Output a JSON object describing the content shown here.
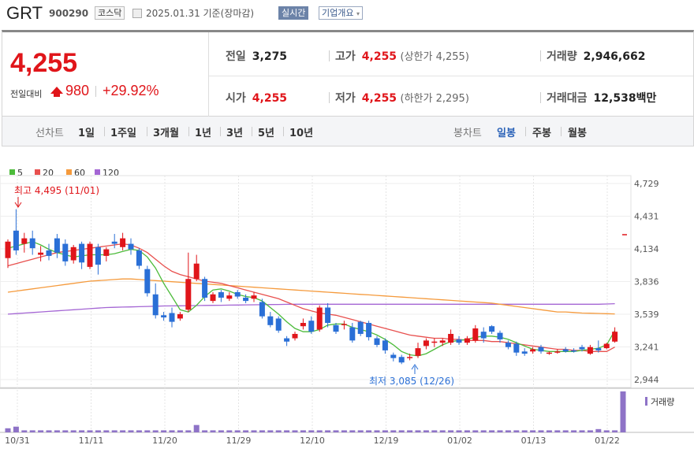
{
  "header": {
    "name": "GRT",
    "code": "900290",
    "market": "코스닥",
    "date_text": "2025.01.31  기준(장마감)",
    "realtime_label": "실시간",
    "company_label": "기업개요",
    "company_caret": "▾"
  },
  "price": {
    "current": "4,255",
    "change_label": "전일대비",
    "change_value": "980",
    "change_pct": "+29.92%"
  },
  "stats": {
    "prev_close_label": "전일",
    "prev_close": "3,275",
    "high_label": "고가",
    "high": "4,255",
    "upper_limit": "(상한가 4,255)",
    "volume_label": "거래량",
    "volume": "2,946,662",
    "open_label": "시가",
    "open": "4,255",
    "low_label": "저가",
    "low": "4,255",
    "lower_limit": "(하한가 2,295)",
    "amount_label": "거래대금",
    "amount": "12,538",
    "amount_unit": "백만"
  },
  "periods": {
    "line_label": "선차트",
    "items": [
      "1일",
      "1주일",
      "3개월",
      "1년",
      "3년",
      "5년",
      "10년"
    ],
    "candle_label": "봉차트",
    "candle_items": [
      "일봉",
      "주봉",
      "월봉"
    ],
    "candle_active": "일봉"
  },
  "colors": {
    "up": "#e0151a",
    "down": "#2a6fd6",
    "ma5": "#4cbb3a",
    "ma20": "#e8504e",
    "ma60": "#f59a3c",
    "ma120": "#a466d4",
    "volume": "#8e73c7"
  },
  "chart_data": {
    "type": "candlestick",
    "legend": [
      "5",
      "20",
      "60",
      "120"
    ],
    "y_ticks": [
      "4,729",
      "4,431",
      "4,134",
      "3,836",
      "3,539",
      "3,241",
      "2,944"
    ],
    "ylim": [
      2944,
      4729
    ],
    "x_ticks": [
      "10/31",
      "11/11",
      "11/20",
      "11/29",
      "12/10",
      "12/19",
      "01/02",
      "01/13",
      "01/22"
    ],
    "max_annotation": "최고 4,495 (11/01)",
    "min_annotation": "최저 3,085 (12/26)",
    "volume_label": "거래량",
    "candles": [
      [
        4050,
        4200,
        3960,
        4220
      ],
      [
        4300,
        4120,
        4080,
        4495
      ],
      [
        4180,
        4230,
        4100,
        4280
      ],
      [
        4230,
        4140,
        4080,
        4300
      ],
      [
        4080,
        4100,
        4020,
        4160
      ],
      [
        4120,
        4070,
        4030,
        4180
      ],
      [
        4230,
        4100,
        4050,
        4270
      ],
      [
        4180,
        4020,
        3980,
        4220
      ],
      [
        4030,
        4150,
        4000,
        4170
      ],
      [
        4180,
        4010,
        3950,
        4200
      ],
      [
        3970,
        4180,
        3950,
        4200
      ],
      [
        4150,
        3990,
        3900,
        4180
      ],
      [
        4070,
        4130,
        4020,
        4150
      ],
      [
        4200,
        4180,
        4140,
        4270
      ],
      [
        4150,
        4230,
        4120,
        4280
      ],
      [
        4180,
        4130,
        4080,
        4230
      ],
      [
        4120,
        3980,
        3950,
        4140
      ],
      [
        3950,
        3730,
        3700,
        3980
      ],
      [
        3720,
        3530,
        3500,
        3820
      ],
      [
        3530,
        3510,
        3480,
        3560
      ],
      [
        3550,
        3470,
        3420,
        3600
      ],
      [
        3500,
        3540,
        3480,
        3560
      ],
      [
        3580,
        3860,
        3560,
        4100
      ],
      [
        3860,
        4000,
        3840,
        4080
      ],
      [
        3860,
        3690,
        3660,
        3880
      ],
      [
        3660,
        3720,
        3640,
        3740
      ],
      [
        3740,
        3690,
        3650,
        3760
      ],
      [
        3680,
        3710,
        3660,
        3740
      ],
      [
        3740,
        3700,
        3680,
        3760
      ],
      [
        3690,
        3660,
        3640,
        3720
      ],
      [
        3680,
        3710,
        3650,
        3740
      ],
      [
        3650,
        3520,
        3500,
        3680
      ],
      [
        3520,
        3440,
        3420,
        3560
      ],
      [
        3500,
        3390,
        3370,
        3520
      ],
      [
        3320,
        3290,
        3250,
        3340
      ],
      [
        3320,
        3360,
        3300,
        3380
      ],
      [
        3430,
        3460,
        3400,
        3500
      ],
      [
        3480,
        3380,
        3360,
        3520
      ],
      [
        3400,
        3600,
        3380,
        3620
      ],
      [
        3600,
        3460,
        3420,
        3640
      ],
      [
        3440,
        3380,
        3360,
        3460
      ],
      [
        3440,
        3450,
        3400,
        3480
      ],
      [
        3420,
        3300,
        3280,
        3460
      ],
      [
        3470,
        3360,
        3340,
        3480
      ],
      [
        3460,
        3330,
        3300,
        3480
      ],
      [
        3320,
        3260,
        3240,
        3340
      ],
      [
        3300,
        3210,
        3180,
        3320
      ],
      [
        3170,
        3140,
        3110,
        3190
      ],
      [
        3150,
        3100,
        3085,
        3170
      ],
      [
        3140,
        3150,
        3120,
        3180
      ],
      [
        3160,
        3230,
        3140,
        3280
      ],
      [
        3250,
        3300,
        3220,
        3320
      ],
      [
        3280,
        3290,
        3240,
        3320
      ],
      [
        3280,
        3300,
        3250,
        3320
      ],
      [
        3280,
        3360,
        3260,
        3400
      ],
      [
        3310,
        3280,
        3260,
        3340
      ],
      [
        3280,
        3320,
        3260,
        3340
      ],
      [
        3300,
        3410,
        3280,
        3440
      ],
      [
        3380,
        3320,
        3280,
        3420
      ],
      [
        3430,
        3380,
        3360,
        3440
      ],
      [
        3370,
        3310,
        3280,
        3390
      ],
      [
        3280,
        3240,
        3220,
        3300
      ],
      [
        3270,
        3190,
        3160,
        3290
      ],
      [
        3200,
        3180,
        3160,
        3230
      ],
      [
        3200,
        3220,
        3180,
        3240
      ],
      [
        3240,
        3200,
        3180,
        3260
      ],
      [
        3180,
        3190,
        3170,
        3200
      ],
      [
        3190,
        3200,
        3180,
        3220
      ],
      [
        3220,
        3200,
        3190,
        3240
      ],
      [
        3210,
        3200,
        3190,
        3230
      ],
      [
        3240,
        3220,
        3200,
        3260
      ],
      [
        3180,
        3240,
        3170,
        3260
      ],
      [
        3230,
        3210,
        3190,
        3300
      ],
      [
        3230,
        3270,
        3220,
        3280
      ],
      [
        3290,
        3380,
        3280,
        3420
      ]
    ],
    "volumes": [
      10,
      14,
      5,
      5,
      5,
      5,
      5,
      5,
      5,
      5,
      5,
      5,
      5,
      5,
      5,
      5,
      5,
      5,
      5,
      5,
      5,
      5,
      5,
      18,
      5,
      5,
      5,
      5,
      5,
      5,
      5,
      5,
      5,
      5,
      5,
      5,
      5,
      5,
      5,
      5,
      5,
      5,
      5,
      5,
      5,
      5,
      5,
      5,
      5,
      5,
      5,
      5,
      5,
      5,
      5,
      5,
      5,
      5,
      5,
      5,
      5,
      5,
      5,
      5,
      5,
      5,
      5,
      5,
      5,
      5,
      5,
      5,
      8,
      5,
      5,
      100
    ],
    "ma5": [
      4140,
      4160,
      4180,
      4200,
      4170,
      4130,
      4100,
      4080,
      4060,
      4070,
      4080,
      4080,
      4080,
      4090,
      4110,
      4130,
      4120,
      4060,
      3960,
      3820,
      3700,
      3580,
      3560,
      3620,
      3700,
      3760,
      3770,
      3750,
      3720,
      3700,
      3690,
      3660,
      3600,
      3540,
      3470,
      3410,
      3380,
      3380,
      3400,
      3440,
      3450,
      3450,
      3420,
      3400,
      3380,
      3350,
      3310,
      3260,
      3200,
      3170,
      3160,
      3180,
      3220,
      3260,
      3290,
      3300,
      3310,
      3330,
      3340,
      3340,
      3330,
      3310,
      3280,
      3250,
      3220,
      3210,
      3200,
      3200,
      3200,
      3200,
      3210,
      3220,
      3230,
      3260,
      3390
    ],
    "ma20": [
      3980,
      4000,
      4020,
      4040,
      4060,
      4080,
      4100,
      4110,
      4120,
      4130,
      4140,
      4150,
      4160,
      4170,
      4180,
      4170,
      4140,
      4100,
      4040,
      3980,
      3930,
      3900,
      3880,
      3860,
      3840,
      3830,
      3820,
      3800,
      3780,
      3760,
      3740,
      3720,
      3700,
      3680,
      3650,
      3620,
      3590,
      3570,
      3550,
      3540,
      3530,
      3510,
      3490,
      3470,
      3450,
      3430,
      3410,
      3390,
      3370,
      3350,
      3340,
      3330,
      3320,
      3320,
      3310,
      3310,
      3300,
      3300,
      3300,
      3290,
      3290,
      3280,
      3270,
      3260,
      3250,
      3240,
      3230,
      3220,
      3220,
      3210,
      3210,
      3200,
      3200,
      3200,
      3240
    ],
    "ma60": [
      3740,
      3750,
      3760,
      3770,
      3780,
      3790,
      3800,
      3810,
      3820,
      3830,
      3840,
      3845,
      3850,
      3855,
      3860,
      3860,
      3855,
      3850,
      3845,
      3840,
      3835,
      3830,
      3825,
      3820,
      3815,
      3810,
      3805,
      3800,
      3795,
      3790,
      3785,
      3780,
      3775,
      3770,
      3765,
      3760,
      3755,
      3750,
      3745,
      3740,
      3735,
      3730,
      3725,
      3720,
      3715,
      3710,
      3705,
      3700,
      3695,
      3690,
      3685,
      3680,
      3675,
      3670,
      3665,
      3660,
      3655,
      3650,
      3645,
      3640,
      3630,
      3620,
      3610,
      3600,
      3590,
      3580,
      3570,
      3560,
      3560,
      3555,
      3550,
      3548,
      3546,
      3544,
      3542
    ],
    "ma120": [
      3540,
      3545,
      3550,
      3555,
      3560,
      3565,
      3570,
      3575,
      3580,
      3585,
      3590,
      3595,
      3600,
      3602,
      3604,
      3606,
      3608,
      3610,
      3612,
      3614,
      3615,
      3616,
      3617,
      3618,
      3619,
      3620,
      3621,
      3622,
      3623,
      3624,
      3625,
      3626,
      3627,
      3628,
      3629,
      3630,
      3630,
      3630,
      3630,
      3630,
      3630,
      3630,
      3630,
      3630,
      3630,
      3630,
      3630,
      3630,
      3630,
      3630,
      3630,
      3630,
      3630,
      3630,
      3630,
      3630,
      3630,
      3630,
      3630,
      3630,
      3630,
      3630,
      3630,
      3630,
      3630,
      3630,
      3630,
      3630,
      3630,
      3630,
      3630,
      3630,
      3630,
      3632,
      3635
    ]
  }
}
